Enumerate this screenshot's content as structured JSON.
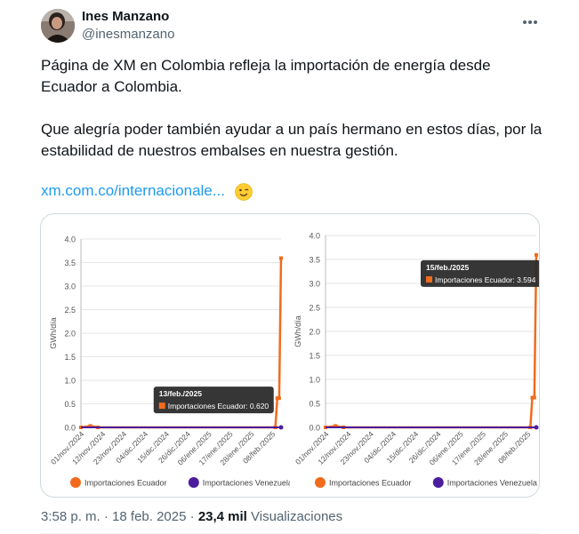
{
  "author": {
    "name": "Ines Manzano",
    "handle": "@inesmanzano"
  },
  "more_icon": "more-horizontal-icon",
  "tweet": {
    "paragraph1": "Página de XM en Colombia refleja la importación de energía desde Ecuador a Colombia.",
    "paragraph2": "Que alegría poder también ayudar a un país hermano en estos días, por la estabilidad de nuestros embalses en nuestra gestión.",
    "link_text": "xm.com.co/internacionale...",
    "emoji": "winking-face-emoji"
  },
  "chart_data": [
    {
      "type": "line",
      "ylabel": "GWh/día",
      "ylim": [
        0,
        4.0
      ],
      "yticks": [
        "0.0",
        "0.5",
        "1.0",
        "1.5",
        "2.0",
        "2.5",
        "3.0",
        "3.5",
        "4.0"
      ],
      "xticks": [
        "01/nov./2024",
        "12/nov./2024",
        "23/nov./2024",
        "04/dic./2024",
        "15/dic./2024",
        "26/dic./2024",
        "06/ene./2025",
        "17/ene./2025",
        "28/ene./2025",
        "08/feb./2025"
      ],
      "series": [
        {
          "name": "Importaciones Ecuador",
          "color": "#f26b1d",
          "points": [
            [
              "2024-11-01",
              0
            ],
            [
              "2024-11-06",
              0.03
            ],
            [
              "2024-11-10",
              0
            ],
            [
              "2025-02-12",
              0
            ],
            [
              "2025-02-13",
              0.62
            ],
            [
              "2025-02-14",
              0.62
            ],
            [
              "2025-02-15",
              3.594
            ]
          ]
        },
        {
          "name": "Importaciones Venezuela",
          "color": "#4b1d9e",
          "points": [
            [
              "2024-11-01",
              0
            ],
            [
              "2025-02-15",
              0
            ]
          ]
        }
      ],
      "tooltip": {
        "date": "13/feb./2025",
        "series": "Importaciones Ecuador",
        "value": "0.620"
      }
    },
    {
      "type": "line",
      "ylabel": "GWh/día",
      "ylim": [
        0,
        4.0
      ],
      "yticks": [
        "0.0",
        "0.5",
        "1.0",
        "1.5",
        "2.0",
        "2.5",
        "3.0",
        "3.5",
        "4.0"
      ],
      "xticks": [
        "01/nov./2024",
        "12/nov./2024",
        "23/nov./2024",
        "04/dic./2024",
        "15/dic./2024",
        "26/dic./2024",
        "06/ene./2025",
        "17/ene./2025",
        "28/ene./2025",
        "08/feb./2025"
      ],
      "series": [
        {
          "name": "Importaciones Ecuador",
          "color": "#f26b1d",
          "points": [
            [
              "2024-11-01",
              0
            ],
            [
              "2024-11-06",
              0.03
            ],
            [
              "2024-11-10",
              0
            ],
            [
              "2025-02-12",
              0
            ],
            [
              "2025-02-13",
              0.62
            ],
            [
              "2025-02-14",
              0.62
            ],
            [
              "2025-02-15",
              3.594
            ]
          ]
        },
        {
          "name": "Importaciones Venezuela",
          "color": "#4b1d9e",
          "points": [
            [
              "2024-11-01",
              0
            ],
            [
              "2025-02-15",
              0
            ]
          ]
        }
      ],
      "tooltip": {
        "date": "15/feb./2025",
        "series": "Importaciones Ecuador",
        "value": "3.594"
      }
    }
  ],
  "footer": {
    "time": "3:58 p. m.",
    "separator": "·",
    "date": "18 feb. 2025",
    "views_count": "23,4 mil",
    "views_label": "Visualizaciones"
  }
}
